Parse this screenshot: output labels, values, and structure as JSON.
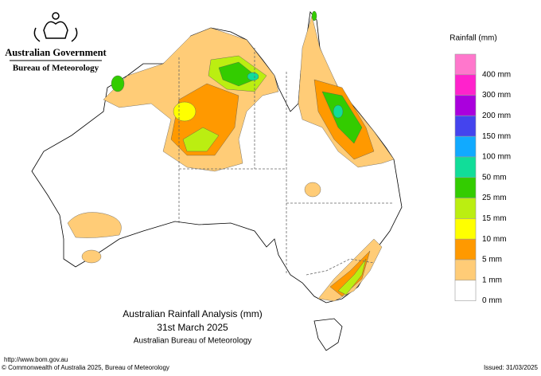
{
  "header": {
    "government": "Australian Government",
    "agency": "Bureau of Meteorology"
  },
  "legend": {
    "title": "Rainfall (mm)",
    "colors": [
      "#ff77cc",
      "#ff22cc",
      "#aa00dd",
      "#4444ee",
      "#11aaff",
      "#11dd99",
      "#33cc00",
      "#bbee11",
      "#ffff00",
      "#ff9900",
      "#ffcc77",
      "#ffffff"
    ],
    "labels": [
      "400 mm",
      "300 mm",
      "200 mm",
      "150 mm",
      "100 mm",
      "50 mm",
      "25 mm",
      "15 mm",
      "10 mm",
      "5 mm",
      "1 mm",
      "0 mm"
    ]
  },
  "title": {
    "line1": "Australian Rainfall Analysis (mm)",
    "line2": "31st March 2025",
    "line3": "Australian Bureau of Meteorology"
  },
  "footer": {
    "url": "http://www.bom.gov.au",
    "copyright": "© Commonwealth of Australia 2025, Bureau of Meteorology",
    "issued": "Issued: 31/03/2025"
  }
}
